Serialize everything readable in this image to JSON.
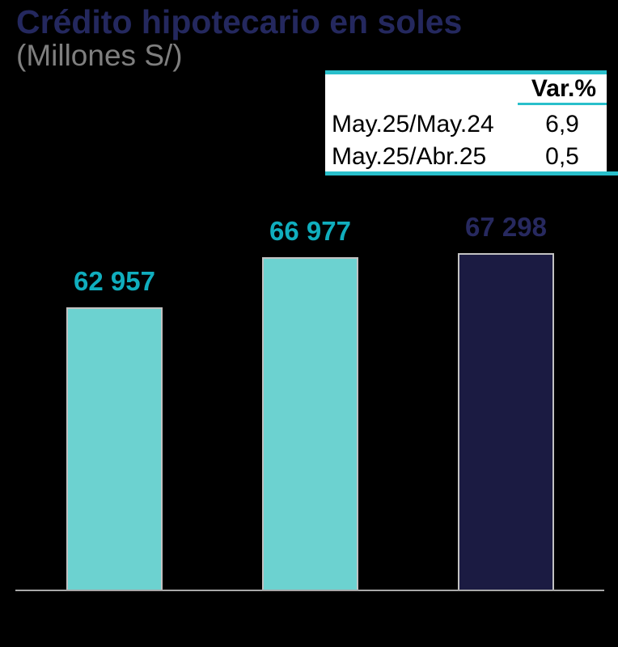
{
  "page": {
    "background_color": "#000000"
  },
  "header": {
    "title_color": "#24285E",
    "subtitle_color": "#7F7F7F"
  },
  "table": {
    "header": "Var.%",
    "rows": [
      {
        "label": "May.25/May.24",
        "value": "6,9"
      },
      {
        "label": "May.25/Abr.25",
        "value": "0,5"
      }
    ],
    "accent_color": "#29BFCB",
    "background_color": "#FFFFFF",
    "text_color": "#000000"
  },
  "chart_data": {
    "type": "bar",
    "title": "Crédito hipotecario en soles",
    "subtitle": "(Millones S/)",
    "categories": [
      "",
      "",
      ""
    ],
    "values": [
      62957,
      66977,
      67298
    ],
    "value_labels": [
      "62 957",
      "66 977",
      "67 298"
    ],
    "ylim_estimate": [
      40200,
      70000
    ],
    "grid": false,
    "legend": false,
    "colors": {
      "bar_fill": [
        "#6CD2D0",
        "#6CD2D0",
        "#1B1B42"
      ],
      "bar_border": "#C2C2C2",
      "value_label": [
        "#10AEBE",
        "#10AEBE",
        "#27295F"
      ],
      "axis_line": "#A8A8A8"
    }
  }
}
